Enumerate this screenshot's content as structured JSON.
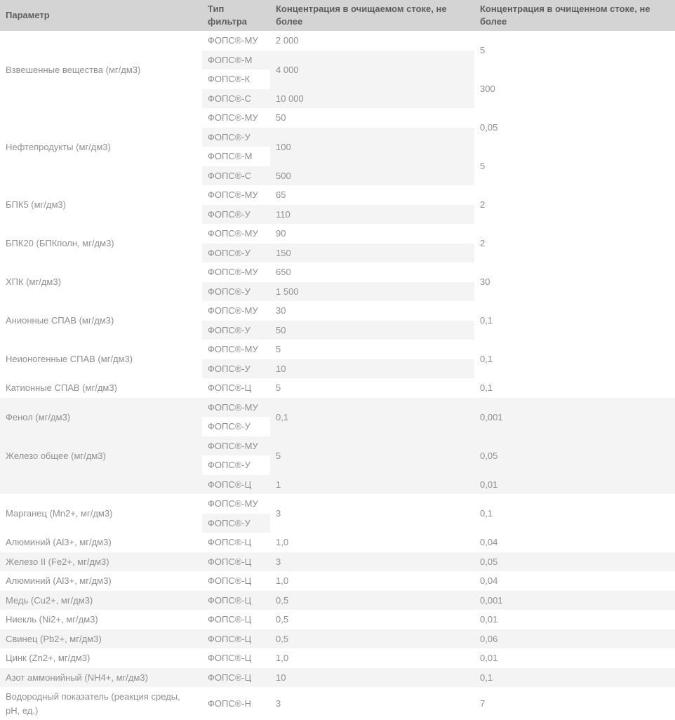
{
  "colors": {
    "header_bg": "#d4d4d4",
    "header_text": "#5e5e5e",
    "body_text": "#8f8f8f",
    "stripe_bg": "#f4f4f4",
    "row_bg": "#ffffff"
  },
  "table": {
    "headers": [
      {
        "id": "param",
        "label": "Параметр"
      },
      {
        "id": "type",
        "label": "Тип фильтра"
      },
      {
        "id": "inlet",
        "label": "Концентрация в очищаемом стоке, не более"
      },
      {
        "id": "outlet",
        "label": "Концентрация в очищенном стоке, не более"
      }
    ],
    "rows": [
      [
        {
          "col": "param",
          "value": "Взвешенные вещества (мг/дм3)",
          "span": 4
        },
        {
          "col": "type",
          "value": "ФОПС®-МУ"
        },
        {
          "col": "inlet",
          "value": "2 000"
        },
        {
          "col": "outlet",
          "value": "5",
          "span": 2
        }
      ],
      [
        {
          "col": "type",
          "value": "ФОПС®-М"
        },
        {
          "col": "inlet",
          "value": "4 000",
          "span": 2
        }
      ],
      [
        {
          "col": "type",
          "value": "ФОПС®-К"
        },
        {
          "col": "outlet",
          "value": "300",
          "span": 2
        }
      ],
      [
        {
          "col": "type",
          "value": "ФОПС®-С"
        },
        {
          "col": "inlet",
          "value": "10 000"
        }
      ],
      [
        {
          "col": "param",
          "value": "Нефтепродукты (мг/дм3)",
          "span": 4
        },
        {
          "col": "type",
          "value": "ФОПС®-МУ"
        },
        {
          "col": "inlet",
          "value": "50"
        },
        {
          "col": "outlet",
          "value": "0,05",
          "span": 2
        }
      ],
      [
        {
          "col": "type",
          "value": "ФОПС®-У"
        },
        {
          "col": "inlet",
          "value": "100",
          "span": 2
        }
      ],
      [
        {
          "col": "type",
          "value": "ФОПС®-М"
        },
        {
          "col": "outlet",
          "value": "5",
          "span": 2
        }
      ],
      [
        {
          "col": "type",
          "value": "ФОПС®-С"
        },
        {
          "col": "inlet",
          "value": "500"
        }
      ],
      [
        {
          "col": "param",
          "value": "БПК5 (мг/дм3)",
          "span": 2
        },
        {
          "col": "type",
          "value": "ФОПС®-МУ"
        },
        {
          "col": "inlet",
          "value": "65"
        },
        {
          "col": "outlet",
          "value": "2",
          "span": 2
        }
      ],
      [
        {
          "col": "type",
          "value": "ФОПС®-У"
        },
        {
          "col": "inlet",
          "value": "110"
        }
      ],
      [
        {
          "col": "param",
          "value": "БПК20 (БПКполн, мг/дм3)",
          "span": 2
        },
        {
          "col": "type",
          "value": "ФОПС®-МУ"
        },
        {
          "col": "inlet",
          "value": "90"
        },
        {
          "col": "outlet",
          "value": "2",
          "span": 2
        }
      ],
      [
        {
          "col": "type",
          "value": "ФОПС®-У"
        },
        {
          "col": "inlet",
          "value": "150"
        }
      ],
      [
        {
          "col": "param",
          "value": "ХПК (мг/дм3)",
          "span": 2
        },
        {
          "col": "type",
          "value": "ФОПС®-МУ"
        },
        {
          "col": "inlet",
          "value": "650"
        },
        {
          "col": "outlet",
          "value": "30",
          "span": 2
        }
      ],
      [
        {
          "col": "type",
          "value": "ФОПС®-У"
        },
        {
          "col": "inlet",
          "value": "1 500"
        }
      ],
      [
        {
          "col": "param",
          "value": "Анионные СПАВ (мг/дм3)",
          "span": 2
        },
        {
          "col": "type",
          "value": "ФОПС®-МУ"
        },
        {
          "col": "inlet",
          "value": "30"
        },
        {
          "col": "outlet",
          "value": "0,1",
          "span": 2
        }
      ],
      [
        {
          "col": "type",
          "value": "ФОПС®-У"
        },
        {
          "col": "inlet",
          "value": "50"
        }
      ],
      [
        {
          "col": "param",
          "value": "Неионогенные СПАВ (мг/дм3)",
          "span": 2
        },
        {
          "col": "type",
          "value": "ФОПС®-МУ"
        },
        {
          "col": "inlet",
          "value": "5"
        },
        {
          "col": "outlet",
          "value": "0,1",
          "span": 2
        }
      ],
      [
        {
          "col": "type",
          "value": "ФОПС®-У"
        },
        {
          "col": "inlet",
          "value": "10"
        }
      ],
      [
        {
          "col": "param",
          "value": "Катионные СПАВ (мг/дм3)"
        },
        {
          "col": "type",
          "value": "ФОПС®-Ц"
        },
        {
          "col": "inlet",
          "value": "5"
        },
        {
          "col": "outlet",
          "value": "0,1"
        }
      ],
      [
        {
          "col": "param",
          "value": "Фенол (мг/дм3)",
          "span": 2
        },
        {
          "col": "type",
          "value": "ФОПС®-МУ"
        },
        {
          "col": "inlet",
          "value": "0,1",
          "span": 2
        },
        {
          "col": "outlet",
          "value": "0,001",
          "span": 2
        }
      ],
      [
        {
          "col": "type",
          "value": "ФОПС®-У"
        }
      ],
      [
        {
          "col": "param",
          "value": "Железо общее (мг/дм3)",
          "span": 2
        },
        {
          "col": "type",
          "value": "ФОПС®-МУ"
        },
        {
          "col": "inlet",
          "value": "5",
          "span": 2
        },
        {
          "col": "outlet",
          "value": "0,05",
          "span": 2
        }
      ],
      [
        {
          "col": "type",
          "value": "ФОПС®-У"
        }
      ],
      [
        {
          "col": "param",
          "value": ""
        },
        {
          "col": "type",
          "value": "ФОПС®-Ц"
        },
        {
          "col": "inlet",
          "value": "1"
        },
        {
          "col": "outlet",
          "value": "0,01"
        }
      ],
      [
        {
          "col": "param",
          "value": "Марганец (Mn2+, мг/дм3)",
          "span": 2
        },
        {
          "col": "type",
          "value": "ФОПС®-МУ"
        },
        {
          "col": "inlet",
          "value": "3",
          "span": 2
        },
        {
          "col": "outlet",
          "value": "0,1",
          "span": 2
        }
      ],
      [
        {
          "col": "type",
          "value": "ФОПС®-У"
        }
      ],
      [
        {
          "col": "param",
          "value": "Алюминий (Al3+, мг/дм3)"
        },
        {
          "col": "type",
          "value": "ФОПС®-Ц"
        },
        {
          "col": "inlet",
          "value": "1,0"
        },
        {
          "col": "outlet",
          "value": "0,04"
        }
      ],
      [
        {
          "col": "param",
          "value": "Железо II (Fe2+, мг/дм3)"
        },
        {
          "col": "type",
          "value": "ФОПС®-Ц"
        },
        {
          "col": "inlet",
          "value": "3"
        },
        {
          "col": "outlet",
          "value": "0,05"
        }
      ],
      [
        {
          "col": "param",
          "value": "Алюминий (Al3+, мг/дм3)"
        },
        {
          "col": "type",
          "value": "ФОПС®-Ц"
        },
        {
          "col": "inlet",
          "value": "1,0"
        },
        {
          "col": "outlet",
          "value": "0,04"
        }
      ],
      [
        {
          "col": "param",
          "value": "Медь (Cu2+, мг/дм3)"
        },
        {
          "col": "type",
          "value": "ФОПС®-Ц"
        },
        {
          "col": "inlet",
          "value": "0,5"
        },
        {
          "col": "outlet",
          "value": "0,001"
        }
      ],
      [
        {
          "col": "param",
          "value": "Ниекль (Ni2+, мг/дм3)"
        },
        {
          "col": "type",
          "value": "ФОПС®-Ц"
        },
        {
          "col": "inlet",
          "value": "0,5"
        },
        {
          "col": "outlet",
          "value": "0,01"
        }
      ],
      [
        {
          "col": "param",
          "value": "Свинец (Pb2+, мг/дм3)"
        },
        {
          "col": "type",
          "value": "ФОПС®-Ц"
        },
        {
          "col": "inlet",
          "value": "0,5"
        },
        {
          "col": "outlet",
          "value": "0,06"
        }
      ],
      [
        {
          "col": "param",
          "value": "Цинк (Zn2+, мг/дм3)"
        },
        {
          "col": "type",
          "value": "ФОПС®-Ц"
        },
        {
          "col": "inlet",
          "value": "1,0"
        },
        {
          "col": "outlet",
          "value": "0,01"
        }
      ],
      [
        {
          "col": "param",
          "value": "Азот аммонийный (NH4+, мг/дм3)"
        },
        {
          "col": "type",
          "value": "ФОПС®-Ц"
        },
        {
          "col": "inlet",
          "value": "10"
        },
        {
          "col": "outlet",
          "value": "0,1"
        }
      ],
      [
        {
          "col": "param",
          "value": "Водородный показатель (реакция среды, pH, ед.)"
        },
        {
          "col": "type",
          "value": "ФОПС®-Н"
        },
        {
          "col": "inlet",
          "value": "3"
        },
        {
          "col": "outlet",
          "value": "7"
        }
      ]
    ]
  }
}
